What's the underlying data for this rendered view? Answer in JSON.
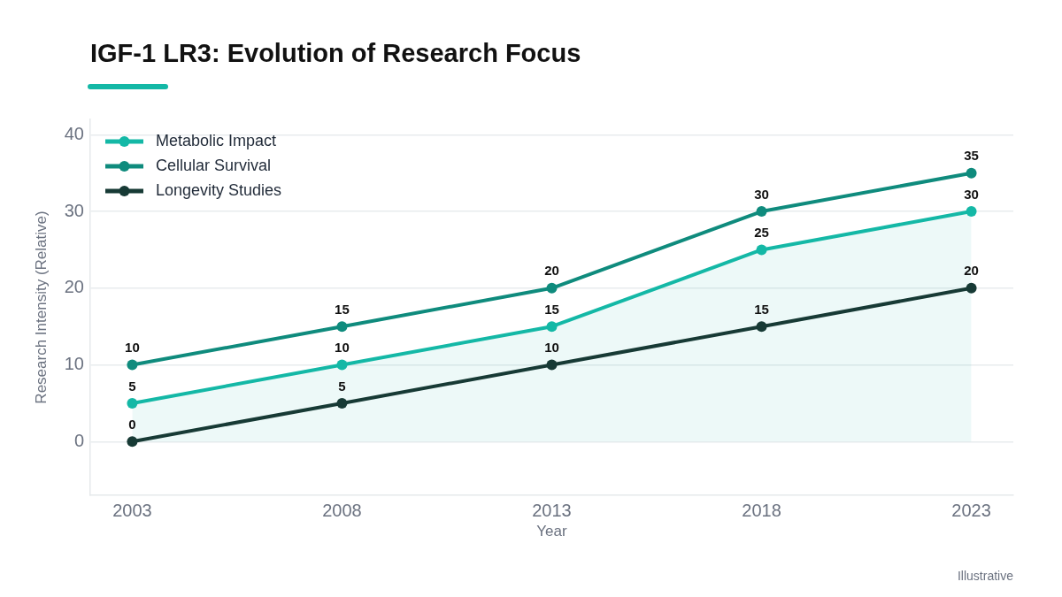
{
  "chart_data": {
    "type": "line",
    "title": "IGF-1 LR3: Evolution of Research Focus",
    "xlabel": "Year",
    "ylabel": "Research Intensity (Relative)",
    "annotations": [
      "Illustrative"
    ],
    "x": [
      2003,
      2008,
      2013,
      2018,
      2023
    ],
    "xlim": [
      2002,
      2024
    ],
    "xticks": [
      2003,
      2008,
      2013,
      2018,
      2023
    ],
    "ylim": [
      -7,
      42
    ],
    "yticks": [
      0,
      10,
      20,
      30,
      40
    ],
    "series": [
      {
        "name": "Metabolic Impact",
        "type": "area",
        "color": "#14b8a6",
        "values": [
          5,
          10,
          15,
          25,
          30
        ]
      },
      {
        "name": "Cellular Survival",
        "color": "#0f8b7d",
        "values": [
          10,
          15,
          20,
          30,
          35
        ]
      },
      {
        "name": "Longevity Studies",
        "color": "#173a35",
        "values": [
          0,
          5,
          10,
          15,
          20
        ]
      }
    ],
    "grid": "y",
    "legend": "top left",
    "marker": "circle",
    "line_style": "solid",
    "data_labels": true
  }
}
